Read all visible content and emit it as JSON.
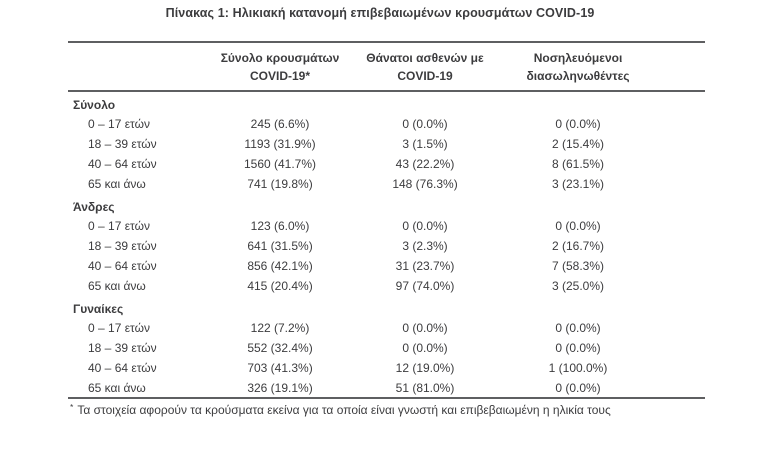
{
  "page": {
    "title": "Πίνακας 1:  Ηλικιακή κατανομή επιβεβαιωμένων κρουσμάτων COVID-19"
  },
  "table": {
    "columns": [
      {
        "line1": "Σύνολο κρουσμάτων",
        "line2": "COVID-19*"
      },
      {
        "line1": "Θάνατοι ασθενών με",
        "line2": "COVID-19"
      },
      {
        "line1": "Νοσηλευόμενοι",
        "line2": "διασωληνωθέντες"
      }
    ],
    "sections": [
      {
        "label": "Σύνολο",
        "rows": [
          {
            "label": "0 – 17 ετών",
            "cells": [
              "245 (6.6%)",
              "0 (0.0%)",
              "0 (0.0%)"
            ]
          },
          {
            "label": "18 – 39 ετών",
            "cells": [
              "1193 (31.9%)",
              "3 (1.5%)",
              "2 (15.4%)"
            ]
          },
          {
            "label": "40 – 64 ετών",
            "cells": [
              "1560 (41.7%)",
              "43 (22.2%)",
              "8 (61.5%)"
            ]
          },
          {
            "label": "65 και άνω",
            "cells": [
              "741 (19.8%)",
              "148 (76.3%)",
              "3 (23.1%)"
            ]
          }
        ]
      },
      {
        "label": "Άνδρες",
        "rows": [
          {
            "label": "0 – 17 ετών",
            "cells": [
              "123 (6.0%)",
              "0 (0.0%)",
              "0 (0.0%)"
            ]
          },
          {
            "label": "18 – 39 ετών",
            "cells": [
              "641 (31.5%)",
              "3 (2.3%)",
              "2 (16.7%)"
            ]
          },
          {
            "label": "40 – 64 ετών",
            "cells": [
              "856 (42.1%)",
              "31 (23.7%)",
              "7 (58.3%)"
            ]
          },
          {
            "label": "65 και άνω",
            "cells": [
              "415 (20.4%)",
              "97 (74.0%)",
              "3 (25.0%)"
            ]
          }
        ]
      },
      {
        "label": "Γυναίκες",
        "rows": [
          {
            "label": "0 – 17 ετών",
            "cells": [
              "122 (7.2%)",
              "0 (0.0%)",
              "0 (0.0%)"
            ]
          },
          {
            "label": "18 – 39 ετών",
            "cells": [
              "552 (32.4%)",
              "0 (0.0%)",
              "0 (0.0%)"
            ]
          },
          {
            "label": "40 – 64 ετών",
            "cells": [
              "703 (41.3%)",
              "12 (19.0%)",
              "1 (100.0%)"
            ]
          },
          {
            "label": "65 και άνω",
            "cells": [
              "326 (19.1%)",
              "51 (81.0%)",
              "0 (0.0%)"
            ]
          }
        ]
      }
    ]
  },
  "footnote": {
    "marker": "*",
    "text": "Τα στοιχεία αφορούν τα κρούσματα εκείνα για τα οποία είναι γνωστή και επιβεβαιωμένη η ηλικία τους"
  },
  "colors": {
    "text": "#3c3c3e",
    "rule": "#5e5f61",
    "background": "#ffffff"
  }
}
